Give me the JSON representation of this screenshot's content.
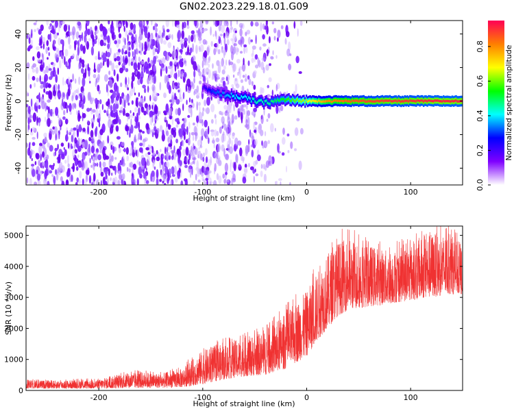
{
  "title": "GN02.2023.229.18.01.G09",
  "chart_data": [
    {
      "type": "heatmap",
      "xlabel": "Height of straight line (km)",
      "ylabel": "Frequency (Hz)",
      "xlim": [
        -270,
        150
      ],
      "ylim": [
        -50,
        48
      ],
      "x_ticks": [
        -200,
        -100,
        0,
        100
      ],
      "y_ticks": [
        -40,
        -20,
        0,
        20,
        40
      ],
      "colorbar": {
        "label": "Normalized spectral amplitude",
        "range": [
          0,
          0.95
        ],
        "ticks": [
          0.0,
          0.2,
          0.4,
          0.6,
          0.8
        ],
        "colormap": [
          "#ffffff",
          "#7f00ff",
          "#0000ff",
          "#00ffff",
          "#00ff00",
          "#ffff00",
          "#ff7f00",
          "#ff0055"
        ]
      },
      "noise_region_x": [
        -270,
        -20
      ],
      "signal_trace": {
        "x": [
          -100,
          -90,
          -80,
          -70,
          -60,
          -50,
          -40,
          -30,
          -20,
          -10,
          0,
          20,
          40,
          60,
          80,
          100,
          120,
          150
        ],
        "frequency": [
          8,
          5,
          4,
          3,
          2,
          0,
          -1,
          0,
          1,
          0,
          0,
          0,
          0,
          0,
          0,
          0,
          0,
          0
        ],
        "amplitude": [
          0.2,
          0.3,
          0.35,
          0.4,
          0.4,
          0.45,
          0.45,
          0.5,
          0.55,
          0.6,
          0.65,
          0.8,
          0.85,
          0.88,
          0.9,
          0.9,
          0.92,
          0.92
        ]
      }
    },
    {
      "type": "line",
      "xlabel": "Height of straight line (km)",
      "ylabel": "SNR (10 * v/v)",
      "xlim": [
        -270,
        150
      ],
      "ylim": [
        0,
        5300
      ],
      "x_ticks": [
        -200,
        -100,
        0,
        100
      ],
      "y_ticks": [
        0,
        1000,
        2000,
        3000,
        4000,
        5000
      ],
      "color": "#f03232",
      "envelope": {
        "x": [
          -270,
          -240,
          -200,
          -180,
          -160,
          -140,
          -120,
          -100,
          -80,
          -60,
          -40,
          -20,
          0,
          10,
          20,
          30,
          40,
          60,
          80,
          100,
          120,
          140,
          150
        ],
        "low": [
          60,
          60,
          60,
          70,
          80,
          80,
          100,
          200,
          350,
          450,
          500,
          700,
          1100,
          1600,
          2000,
          2400,
          2600,
          2700,
          2800,
          2900,
          3000,
          3100,
          3100
        ],
        "high": [
          330,
          320,
          350,
          500,
          600,
          550,
          700,
          1300,
          1500,
          1700,
          1900,
          2500,
          3200,
          3800,
          4400,
          4800,
          4900,
          4700,
          4500,
          4700,
          5100,
          5000,
          4600
        ]
      }
    }
  ]
}
